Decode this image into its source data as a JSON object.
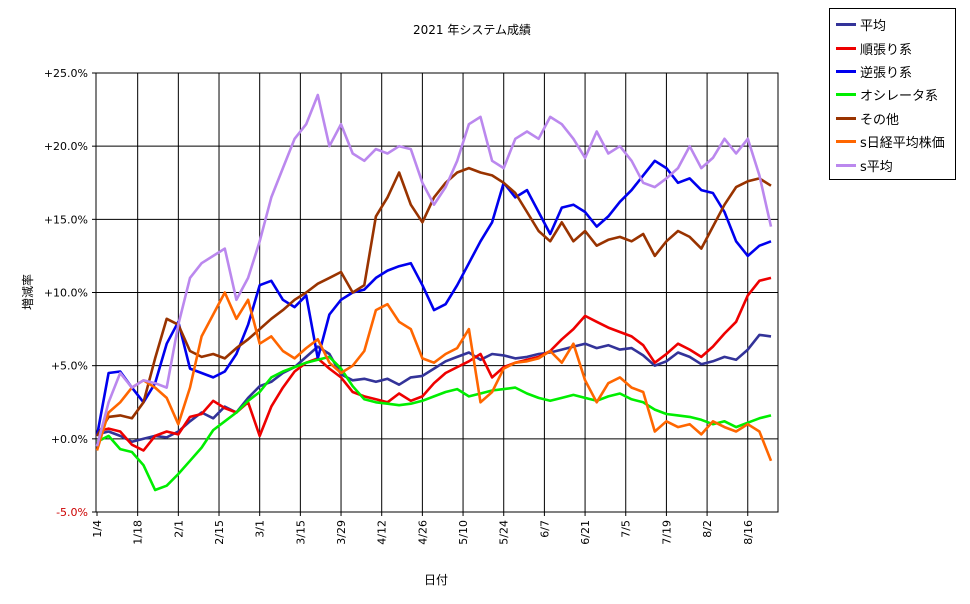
{
  "chart_data": {
    "type": "line",
    "title": "2021 年システム成績",
    "xlabel": "日付",
    "ylabel": "増減率",
    "ylim": [
      -5,
      25
    ],
    "y_ticks": [
      "+25.0%",
      "+20.0%",
      "+15.0%",
      "+10.0%",
      "+5.0%",
      "+0.0%",
      "-5.0%"
    ],
    "y_tick_values": [
      25,
      20,
      15,
      10,
      5,
      0,
      -5
    ],
    "x_ticks": [
      "1/4",
      "1/18",
      "2/1",
      "2/15",
      "3/1",
      "3/15",
      "3/29",
      "4/12",
      "4/26",
      "5/10",
      "5/24",
      "6/7",
      "6/21",
      "7/5",
      "7/19",
      "8/2",
      "8/16"
    ],
    "x_tick_days": [
      4,
      18,
      32,
      46,
      60,
      74,
      88,
      102,
      116,
      130,
      144,
      158,
      172,
      186,
      200,
      214,
      228
    ],
    "x_range_days": [
      4,
      236
    ],
    "grid": true,
    "legend_position": "top-right outside",
    "series": [
      {
        "name": "平均",
        "color": "#333399",
        "x": [
          4,
          8,
          12,
          16,
          20,
          24,
          28,
          32,
          36,
          40,
          44,
          48,
          52,
          56,
          60,
          64,
          68,
          72,
          76,
          80,
          84,
          88,
          92,
          96,
          100,
          104,
          108,
          112,
          116,
          120,
          124,
          128,
          132,
          136,
          140,
          144,
          148,
          152,
          156,
          160,
          164,
          168,
          172,
          176,
          180,
          184,
          188,
          192,
          196,
          200,
          204,
          208,
          212,
          216,
          220,
          224,
          228,
          232,
          236
        ],
        "y": [
          0.3,
          0.5,
          0.2,
          -0.2,
          0.0,
          0.2,
          0.1,
          0.5,
          1.2,
          1.8,
          1.4,
          2.2,
          1.8,
          2.8,
          3.6,
          3.9,
          4.5,
          4.9,
          5.6,
          6.3,
          5.8,
          4.4,
          4.0,
          4.1,
          3.9,
          4.1,
          3.7,
          4.2,
          4.3,
          4.8,
          5.3,
          5.6,
          5.9,
          5.4,
          5.8,
          5.7,
          5.5,
          5.6,
          5.8,
          5.9,
          6.1,
          6.3,
          6.5,
          6.2,
          6.4,
          6.1,
          6.2,
          5.7,
          5.0,
          5.3,
          5.9,
          5.6,
          5.1,
          5.3,
          5.6,
          5.4,
          6.1,
          7.1,
          7.0
        ]
      },
      {
        "name": "順張り系",
        "color": "#ee0000",
        "x": [
          4,
          8,
          12,
          16,
          20,
          24,
          28,
          32,
          36,
          40,
          44,
          48,
          52,
          56,
          60,
          64,
          68,
          72,
          76,
          80,
          84,
          88,
          92,
          96,
          100,
          104,
          108,
          112,
          116,
          120,
          124,
          128,
          132,
          136,
          140,
          144,
          148,
          152,
          156,
          160,
          164,
          168,
          172,
          176,
          180,
          184,
          188,
          192,
          196,
          200,
          204,
          208,
          212,
          216,
          220,
          224,
          228,
          232,
          236
        ],
        "y": [
          0.5,
          0.7,
          0.5,
          -0.4,
          -0.8,
          0.2,
          0.5,
          0.3,
          1.5,
          1.7,
          2.6,
          2.1,
          1.8,
          2.5,
          0.2,
          2.2,
          3.5,
          4.6,
          5.2,
          5.5,
          4.8,
          4.2,
          3.2,
          2.9,
          2.7,
          2.5,
          3.1,
          2.6,
          2.9,
          3.8,
          4.5,
          4.9,
          5.3,
          5.8,
          4.2,
          4.9,
          5.2,
          5.4,
          5.6,
          6.0,
          6.8,
          7.5,
          8.4,
          8.0,
          7.6,
          7.3,
          7.0,
          6.4,
          5.2,
          5.8,
          6.5,
          6.1,
          5.6,
          6.3,
          7.2,
          8.0,
          9.8,
          10.8,
          11.0
        ]
      },
      {
        "name": "逆張り系",
        "color": "#0000ee",
        "x": [
          4,
          8,
          12,
          16,
          20,
          24,
          28,
          32,
          36,
          40,
          44,
          48,
          52,
          56,
          60,
          64,
          68,
          72,
          76,
          80,
          84,
          88,
          92,
          96,
          100,
          104,
          108,
          112,
          116,
          120,
          124,
          128,
          132,
          136,
          140,
          144,
          148,
          152,
          156,
          160,
          164,
          168,
          172,
          176,
          180,
          184,
          188,
          192,
          196,
          200,
          204,
          208,
          212,
          216,
          220,
          224,
          228,
          232,
          236
        ],
        "y": [
          0.2,
          4.5,
          4.6,
          3.5,
          2.5,
          3.8,
          6.5,
          8.0,
          4.8,
          4.5,
          4.2,
          4.6,
          5.8,
          7.8,
          10.5,
          10.8,
          9.5,
          9.0,
          9.8,
          5.5,
          8.5,
          9.5,
          10.0,
          10.2,
          11.0,
          11.5,
          11.8,
          12.0,
          10.5,
          8.8,
          9.2,
          10.5,
          12.0,
          13.5,
          14.8,
          17.5,
          16.5,
          17.0,
          15.5,
          14.0,
          15.8,
          16.0,
          15.5,
          14.5,
          15.2,
          16.2,
          17.0,
          18.0,
          19.0,
          18.5,
          17.5,
          17.8,
          17.0,
          16.8,
          15.5,
          13.5,
          12.5,
          13.2,
          13.5
        ]
      },
      {
        "name": "オシレータ系",
        "color": "#00ee00",
        "x": [
          4,
          8,
          12,
          16,
          20,
          24,
          28,
          32,
          36,
          40,
          44,
          48,
          52,
          56,
          60,
          64,
          68,
          72,
          76,
          80,
          84,
          88,
          92,
          96,
          100,
          104,
          108,
          112,
          116,
          120,
          124,
          128,
          132,
          136,
          140,
          144,
          148,
          152,
          156,
          160,
          164,
          168,
          172,
          176,
          180,
          184,
          188,
          192,
          196,
          200,
          204,
          208,
          212,
          216,
          220,
          224,
          228,
          232,
          236
        ],
        "y": [
          -0.2,
          0.2,
          -0.7,
          -0.9,
          -1.8,
          -3.5,
          -3.2,
          -2.4,
          -1.5,
          -0.6,
          0.6,
          1.2,
          1.8,
          2.6,
          3.2,
          4.2,
          4.6,
          4.9,
          5.2,
          5.4,
          5.6,
          4.8,
          3.6,
          2.7,
          2.5,
          2.4,
          2.3,
          2.4,
          2.6,
          2.9,
          3.2,
          3.4,
          2.9,
          3.1,
          3.3,
          3.4,
          3.5,
          3.1,
          2.8,
          2.6,
          2.8,
          3.0,
          2.8,
          2.6,
          2.9,
          3.1,
          2.7,
          2.5,
          2.0,
          1.7,
          1.6,
          1.5,
          1.3,
          1.0,
          1.2,
          0.8,
          1.1,
          1.4,
          1.6
        ]
      },
      {
        "name": "その他",
        "color": "#993300",
        "x": [
          4,
          8,
          12,
          16,
          20,
          24,
          28,
          32,
          36,
          40,
          44,
          48,
          52,
          56,
          60,
          64,
          68,
          72,
          76,
          80,
          84,
          88,
          92,
          96,
          100,
          104,
          108,
          112,
          116,
          120,
          124,
          128,
          132,
          136,
          140,
          144,
          148,
          152,
          156,
          160,
          164,
          168,
          172,
          176,
          180,
          184,
          188,
          192,
          196,
          200,
          204,
          208,
          212,
          216,
          220,
          224,
          228,
          232,
          236
        ],
        "y": [
          0.2,
          1.5,
          1.6,
          1.4,
          2.5,
          5.5,
          8.2,
          7.8,
          6.0,
          5.6,
          5.8,
          5.5,
          6.2,
          6.8,
          7.5,
          8.2,
          8.8,
          9.5,
          10.0,
          10.6,
          11.0,
          11.4,
          10.0,
          10.5,
          15.2,
          16.5,
          18.2,
          16.0,
          14.8,
          16.5,
          17.5,
          18.2,
          18.5,
          18.2,
          18.0,
          17.5,
          16.8,
          15.5,
          14.2,
          13.5,
          14.8,
          13.5,
          14.2,
          13.2,
          13.6,
          13.8,
          13.5,
          14.0,
          12.5,
          13.5,
          14.2,
          13.8,
          13.0,
          14.5,
          16.0,
          17.2,
          17.6,
          17.8,
          17.3
        ]
      },
      {
        "name": "s日経平均株価",
        "color": "#ff6600",
        "x": [
          4,
          8,
          12,
          16,
          20,
          24,
          28,
          32,
          36,
          40,
          44,
          48,
          52,
          56,
          60,
          64,
          68,
          72,
          76,
          80,
          84,
          88,
          92,
          96,
          100,
          104,
          108,
          112,
          116,
          120,
          124,
          128,
          132,
          136,
          140,
          144,
          148,
          152,
          156,
          160,
          164,
          168,
          172,
          176,
          180,
          184,
          188,
          192,
          196,
          200,
          204,
          208,
          212,
          216,
          220,
          224,
          228,
          232,
          236
        ],
        "y": [
          -0.8,
          1.8,
          2.5,
          3.5,
          4.0,
          3.5,
          2.8,
          1.0,
          3.5,
          7.0,
          8.5,
          10.0,
          8.2,
          9.5,
          6.5,
          7.0,
          6.0,
          5.5,
          6.2,
          6.8,
          5.2,
          4.5,
          5.0,
          6.0,
          8.8,
          9.2,
          8.0,
          7.5,
          5.5,
          5.2,
          5.8,
          6.2,
          7.5,
          2.5,
          3.2,
          4.8,
          5.2,
          5.3,
          5.5,
          6.0,
          5.2,
          6.5,
          4.0,
          2.5,
          3.8,
          4.2,
          3.5,
          3.2,
          0.5,
          1.2,
          0.8,
          1.0,
          0.3,
          1.2,
          0.8,
          0.5,
          1.0,
          0.5,
          -1.5
        ]
      },
      {
        "name": "s平均",
        "color": "#bb88ee",
        "x": [
          4,
          8,
          12,
          16,
          20,
          24,
          28,
          32,
          36,
          40,
          44,
          48,
          52,
          56,
          60,
          64,
          68,
          72,
          76,
          80,
          84,
          88,
          92,
          96,
          100,
          104,
          108,
          112,
          116,
          120,
          124,
          128,
          132,
          136,
          140,
          144,
          148,
          152,
          156,
          160,
          164,
          168,
          172,
          176,
          180,
          184,
          188,
          192,
          196,
          200,
          204,
          208,
          212,
          216,
          220,
          224,
          228,
          232,
          236
        ],
        "y": [
          -0.5,
          2.5,
          4.5,
          3.5,
          4.0,
          3.8,
          3.5,
          7.8,
          11.0,
          12.0,
          12.5,
          13.0,
          9.5,
          11.0,
          13.5,
          16.5,
          18.5,
          20.5,
          21.5,
          23.5,
          20.0,
          21.5,
          19.5,
          19.0,
          19.8,
          19.5,
          20.0,
          19.8,
          17.5,
          16.0,
          17.2,
          19.0,
          21.5,
          22.0,
          19.0,
          18.5,
          20.5,
          21.0,
          20.5,
          22.0,
          21.5,
          20.5,
          19.2,
          21.0,
          19.5,
          20.0,
          19.0,
          17.5,
          17.2,
          17.8,
          18.5,
          20.0,
          18.5,
          19.2,
          20.5,
          19.5,
          20.5,
          18.0,
          14.5
        ]
      }
    ]
  }
}
